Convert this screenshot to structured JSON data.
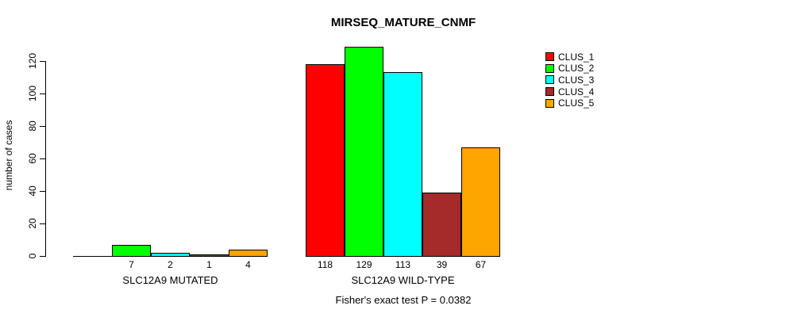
{
  "chart_data": {
    "type": "bar",
    "title": "MIRSEQ_MATURE_CNMF",
    "ylabel": "number of cases",
    "xlabel": "",
    "footer": "Fisher's exact test P = 0.0382",
    "yticks": [
      0,
      20,
      40,
      60,
      80,
      100,
      120
    ],
    "ylim": [
      0,
      120
    ],
    "grid": false,
    "legend_position": "top-right",
    "series": [
      {
        "name": "CLUS_1",
        "color": "#FF0000"
      },
      {
        "name": "CLUS_2",
        "color": "#00FF00"
      },
      {
        "name": "CLUS_3",
        "color": "#00FFFF"
      },
      {
        "name": "CLUS_4",
        "color": "#A52A2A"
      },
      {
        "name": "CLUS_5",
        "color": "#FFA500"
      }
    ],
    "groups": [
      {
        "label": "SLC12A9 MUTATED",
        "values": [
          0,
          7,
          2,
          1,
          4
        ],
        "bar_labels": [
          "",
          "7",
          "2",
          "1",
          "4"
        ]
      },
      {
        "label": "SLC12A9 WILD-TYPE",
        "values": [
          118,
          129,
          113,
          39,
          67
        ],
        "bar_labels": [
          "118",
          "129",
          "113",
          "39",
          "67"
        ]
      }
    ]
  }
}
